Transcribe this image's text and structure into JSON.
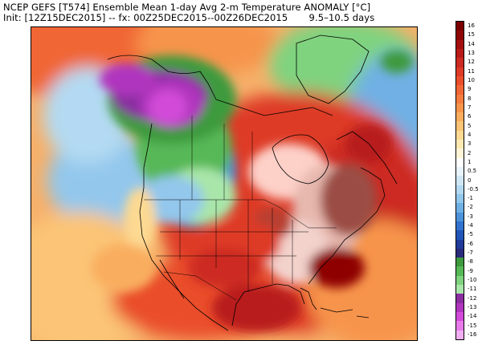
{
  "header": {
    "line1": "NCEP GEFS [T574] Ensemble Mean 1-day Avg 2-m Temperature ANOMALY [°C]",
    "line2": "Init: [12Z15DEC2015] -- fx: 00Z25DEC2015--00Z26DEC2015       9.5–10.5 days"
  },
  "colorbar": {
    "labels": [
      "16",
      "15",
      "14",
      "13",
      "12",
      "11",
      "10",
      "9",
      "8",
      "7",
      "6",
      "5",
      "4",
      "3",
      "2",
      "1",
      "0.5",
      "0",
      "-0.5",
      "-1",
      "-2",
      "-3",
      "-4",
      "-5",
      "-6",
      "-7",
      "-8",
      "-9",
      "-10",
      "-11",
      "-12",
      "-13",
      "-14",
      "-15",
      "-16"
    ],
    "colors": [
      "#7a0000",
      "#8e0606",
      "#a30f0f",
      "#b81a1a",
      "#cc2a22",
      "#de3a28",
      "#ea4e2c",
      "#f06636",
      "#f47c40",
      "#f7944c",
      "#f9ad5e",
      "#fbc476",
      "#fdd992",
      "#fee9b2",
      "#fff5d6",
      "#ffffff",
      "#e9f4fb",
      "#d0e8f6",
      "#b3daf2",
      "#93c7ec",
      "#6fb0e4",
      "#4d93da",
      "#3173cf",
      "#2255b8",
      "#203b9a",
      "#2a2b7c",
      "#3d9a3d",
      "#56b856",
      "#7fd37f",
      "#a9e6a9",
      "#8a2ea0",
      "#b036be",
      "#d14bd8",
      "#e77ae9",
      "#f2aef3"
    ]
  },
  "map_legend_colors": {
    "extreme_warm": "#7a0000",
    "warm": "#de3a28",
    "mild": "#f9ad5e",
    "neutral": "#ffffff",
    "cool": "#93c7ec",
    "cold": "#3173cf",
    "very_cold": "#3d9a3d",
    "extreme_cold": "#b036be"
  }
}
